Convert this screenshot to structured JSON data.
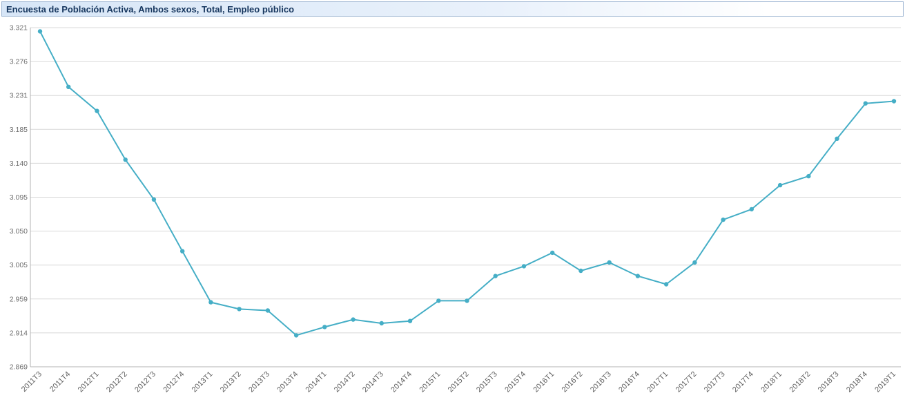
{
  "header": {
    "bg_from": "#d7e6f7",
    "bg_mid": "#e9f1fb",
    "bg_to": "#ffffff",
    "border_color": "#9db5d2",
    "text_color": "#16365e"
  },
  "chart_data": {
    "type": "line",
    "title": "Encuesta de Población Activa, Ambos sexos, Total, Empleo público",
    "series_name": "Empleo público",
    "categories": [
      "2011T3",
      "2011T4",
      "2012T1",
      "2012T2",
      "2012T3",
      "2012T4",
      "2013T1",
      "2013T2",
      "2013T3",
      "2013T4",
      "2014T1",
      "2014T2",
      "2014T3",
      "2014T4",
      "2015T1",
      "2015T2",
      "2015T3",
      "2015T4",
      "2016T1",
      "2016T2",
      "2016T3",
      "2016T4",
      "2017T1",
      "2017T2",
      "2017T3",
      "2017T4",
      "2018T1",
      "2018T2",
      "2018T3",
      "2018T4",
      "2019T1"
    ],
    "values": [
      3316,
      3242,
      3210,
      3145,
      3092,
      3023,
      2955,
      2946,
      2944,
      2911,
      2922,
      2932,
      2927,
      2930,
      2957,
      2957,
      2990,
      3003,
      3021,
      2997,
      3008,
      2990,
      2979,
      3008,
      3065,
      3079,
      3111,
      3123,
      3173,
      3220,
      3223
    ],
    "ylim": [
      2869,
      3321
    ],
    "y_tick_labels": [
      "3.321",
      "3.276",
      "3.231",
      "3.185",
      "3.140",
      "3.095",
      "3.050",
      "3.005",
      "2.959",
      "2.914",
      "2.869"
    ],
    "xlabel": "",
    "ylabel": "",
    "grid": true,
    "legend": "none",
    "line_color": "#45aec6",
    "point_color": "#45aec6",
    "grid_color": "#d8d8d8",
    "axis_color": "#b3b3b3",
    "y_label_color": "#6e6e6e",
    "x_label_color": "#5f5f5f",
    "plot_bg": "#ffffff"
  }
}
